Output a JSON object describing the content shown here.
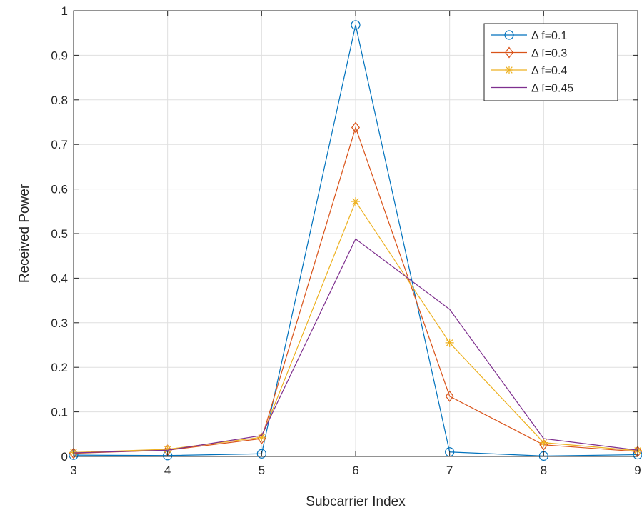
{
  "chart_data": {
    "type": "line",
    "title": "",
    "xlabel": "Subcarrier Index",
    "ylabel": "Received Power",
    "xlim": [
      3,
      9
    ],
    "ylim": [
      0,
      1
    ],
    "xticks": [
      3,
      4,
      5,
      6,
      7,
      8,
      9
    ],
    "yticks": [
      0,
      0.1,
      0.2,
      0.3,
      0.4,
      0.5,
      0.6,
      0.7,
      0.8,
      0.9,
      1
    ],
    "x": [
      3,
      4,
      5,
      6,
      7,
      8,
      9
    ],
    "grid": true,
    "legend_position": "top-right",
    "series": [
      {
        "name": "Δ f=0.1",
        "color": "#0072BD",
        "marker": "circle",
        "values": [
          0.003,
          0.002,
          0.006,
          0.968,
          0.01,
          0.001,
          0.004
        ]
      },
      {
        "name": "Δ f=0.3",
        "color": "#D95319",
        "marker": "diamond",
        "values": [
          0.007,
          0.014,
          0.04,
          0.738,
          0.135,
          0.026,
          0.011
        ]
      },
      {
        "name": "Δ f=0.4",
        "color": "#EDB120",
        "marker": "asterisk",
        "values": [
          0.009,
          0.016,
          0.043,
          0.572,
          0.255,
          0.031,
          0.013
        ]
      },
      {
        "name": "Δ f=0.45",
        "color": "#7E2F8E",
        "marker": "none",
        "values": [
          0.008,
          0.014,
          0.047,
          0.488,
          0.33,
          0.04,
          0.014
        ]
      }
    ]
  }
}
